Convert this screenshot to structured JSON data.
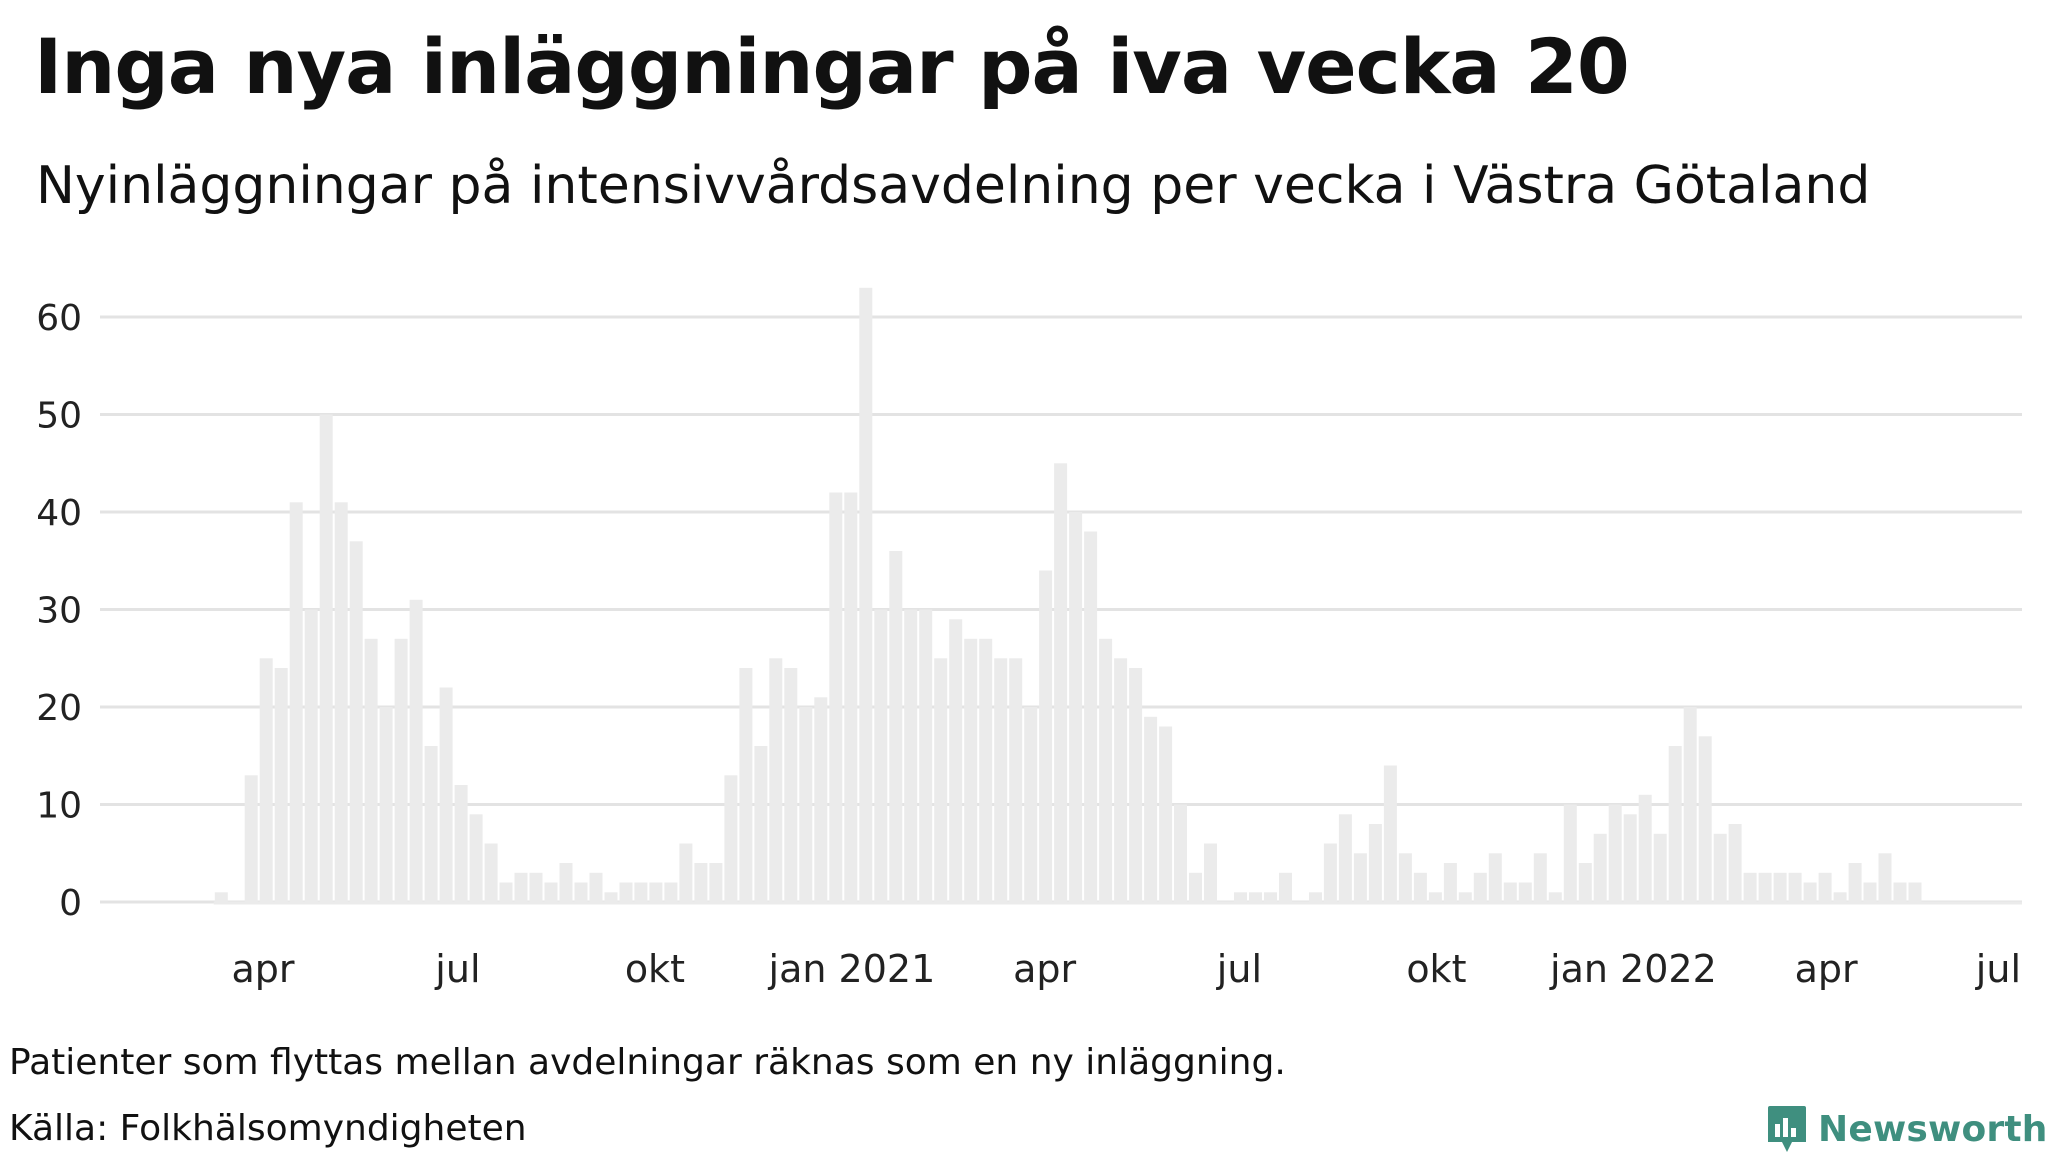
{
  "header": {
    "title": "Inga nya inläggningar på iva vecka 20",
    "subtitle": "Nyinläggningar på intensivvårdsavdelning per vecka i Västra Götaland"
  },
  "footer": {
    "note": "Patienter som flyttas mellan avdelningar räknas som en ny inläggning.",
    "source": "Källa: Folkhälsomyndigheten",
    "logo_text": "Newsworthy"
  },
  "colors": {
    "bar": "#ebebeb",
    "grid": "#e3e3e3",
    "text": "#111111",
    "brand": "#3f8f7f"
  },
  "chart_data": {
    "type": "bar",
    "title": "Inga nya inläggningar på iva vecka 20",
    "subtitle": "Nyinläggningar på intensivvårdsavdelning per vecka i Västra Götaland",
    "xlabel": "",
    "ylabel": "",
    "ylim": [
      0,
      65
    ],
    "y_ticks": [
      0,
      10,
      20,
      30,
      40,
      50,
      60
    ],
    "grid": true,
    "x_tick_labels": [
      "apr",
      "jul",
      "okt",
      "jan 2021",
      "apr",
      "jul",
      "okt",
      "jan 2022",
      "apr",
      "jul"
    ],
    "x_tick_dates": [
      "2020-04-01",
      "2020-07-01",
      "2020-10-01",
      "2021-01-01",
      "2021-04-01",
      "2021-07-01",
      "2021-10-01",
      "2022-01-01",
      "2022-04-01",
      "2022-07-01"
    ],
    "first_week_start": "2020-03-09",
    "last_week_start": "2022-05-23",
    "values": [
      1,
      0,
      13,
      25,
      24,
      41,
      30,
      50,
      41,
      37,
      27,
      20,
      27,
      31,
      16,
      22,
      12,
      9,
      6,
      2,
      3,
      3,
      2,
      4,
      2,
      3,
      1,
      2,
      2,
      2,
      2,
      6,
      4,
      4,
      13,
      24,
      16,
      25,
      24,
      20,
      21,
      42,
      42,
      63,
      30,
      36,
      30,
      30,
      25,
      29,
      27,
      27,
      25,
      25,
      20,
      34,
      45,
      40,
      38,
      27,
      25,
      24,
      19,
      18,
      10,
      3,
      6,
      0,
      1,
      1,
      1,
      3,
      0,
      1,
      6,
      9,
      5,
      8,
      14,
      5,
      3,
      1,
      4,
      1,
      3,
      5,
      2,
      2,
      5,
      1,
      10,
      4,
      7,
      10,
      9,
      11,
      7,
      16,
      20,
      17,
      7,
      8,
      3,
      3,
      3,
      3,
      2,
      3,
      1,
      4,
      2,
      5,
      2,
      2,
      0
    ]
  }
}
